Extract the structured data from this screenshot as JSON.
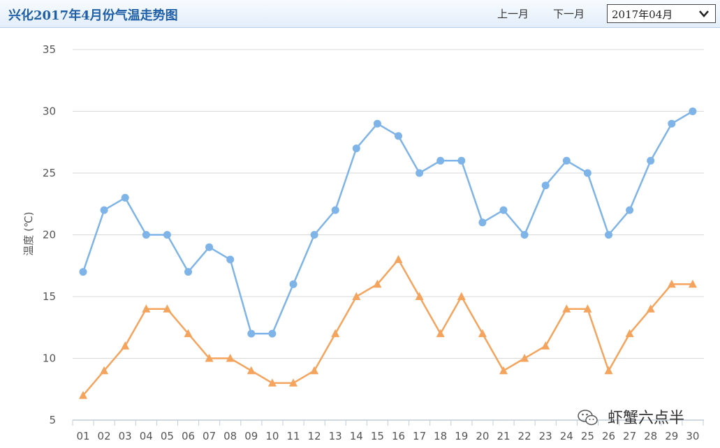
{
  "header": {
    "title": "兴化2017年4月份气温走势图",
    "prev_label": "上一月",
    "next_label": "下一月",
    "month_value": "2017年04月"
  },
  "watermark": {
    "text": "虾蟹六点半",
    "icon": "wechat-icon"
  },
  "colors": {
    "high": "#7eb4e8",
    "low": "#f5a45d",
    "grid": "#d8d8d8"
  },
  "chart_data": {
    "type": "line",
    "title": "兴化2017年4月份气温走势图",
    "xlabel": "",
    "ylabel": "温度 (℃)",
    "ylim": [
      5,
      35
    ],
    "yticks": [
      5,
      10,
      15,
      20,
      25,
      30,
      35
    ],
    "grid": true,
    "categories": [
      "01",
      "02",
      "03",
      "04",
      "05",
      "06",
      "07",
      "08",
      "09",
      "10",
      "11",
      "12",
      "13",
      "14",
      "15",
      "16",
      "17",
      "18",
      "19",
      "20",
      "21",
      "22",
      "23",
      "24",
      "25",
      "26",
      "27",
      "28",
      "29",
      "30"
    ],
    "series": [
      {
        "marker": "circle",
        "values": [
          17,
          22,
          23,
          20,
          20,
          17,
          19,
          18,
          12,
          12,
          16,
          20,
          22,
          27,
          29,
          28,
          25,
          26,
          26,
          21,
          22,
          20,
          24,
          26,
          25,
          20,
          22,
          26,
          29,
          30
        ]
      },
      {
        "marker": "triangle",
        "values": [
          7,
          9,
          11,
          14,
          14,
          12,
          10,
          10,
          9,
          8,
          8,
          9,
          12,
          15,
          16,
          18,
          15,
          12,
          15,
          12,
          9,
          10,
          11,
          14,
          14,
          9,
          12,
          14,
          16,
          16
        ]
      }
    ]
  }
}
